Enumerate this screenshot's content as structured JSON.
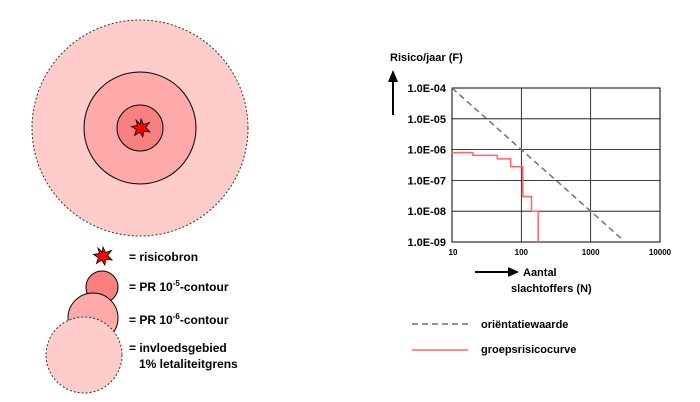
{
  "colors": {
    "outer_zone": "#ffcccc",
    "pr6_zone": "#ffaaaa",
    "pr5_zone": "#f98080",
    "source": "#ff0000",
    "reference_line": "#707070",
    "risk_curve": "#ff6666"
  },
  "legend": {
    "source": {
      "prefix": "= ",
      "label": "risicobron",
      "icon": "explosion-icon"
    },
    "pr5": {
      "prefix": "= PR 10",
      "exp": "-5",
      "suffix": "-contour"
    },
    "pr6": {
      "prefix": "= PR 10",
      "exp": "-6",
      "suffix": "-contour"
    },
    "influence": {
      "line1": "= invloedsgebied",
      "line2": "1% letaliteitgrens"
    }
  },
  "chart_data": {
    "type": "line",
    "ylabel": "Risico/jaar (F)",
    "xlabel_line1": "Aantal",
    "xlabel_line2": "slachtoffers (N)",
    "x_scale": "log",
    "y_scale": "log",
    "xlim": [
      10,
      10000
    ],
    "ylim": [
      1e-09,
      0.0001
    ],
    "x_ticks": [
      "10",
      "100",
      "1000",
      "10000"
    ],
    "y_ticks": [
      "1.0E-09",
      "1.0E-08",
      "1.0E-07",
      "1.0E-06",
      "1.0E-05",
      "1.0E-04"
    ],
    "grid": true,
    "series": [
      {
        "name": "oriëntatiewaarde",
        "style": "dashed",
        "points": [
          [
            10,
            0.0001
          ],
          [
            100,
            1e-06
          ],
          [
            1000,
            1e-08
          ],
          [
            3000,
            1.1e-09
          ]
        ]
      },
      {
        "name": "groepsrisicocurve",
        "style": "step",
        "points": [
          [
            10,
            8e-07
          ],
          [
            20,
            8e-07
          ],
          [
            20,
            6.5e-07
          ],
          [
            45,
            6.5e-07
          ],
          [
            45,
            5e-07
          ],
          [
            70,
            5e-07
          ],
          [
            70,
            2.8e-07
          ],
          [
            105,
            2.8e-07
          ],
          [
            105,
            3e-08
          ],
          [
            140,
            3e-08
          ],
          [
            140,
            1e-08
          ],
          [
            175,
            1e-08
          ],
          [
            175,
            1e-09
          ]
        ]
      }
    ]
  }
}
